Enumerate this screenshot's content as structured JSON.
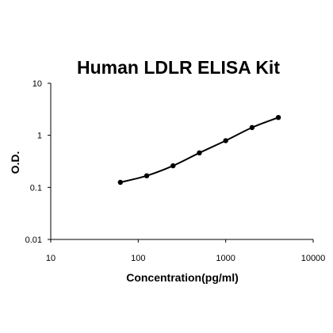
{
  "chart_data": {
    "type": "scatter",
    "title": "Human LDLR ELISA Kit",
    "xlabel": "Concentration(pg/ml)",
    "ylabel": "O.D.",
    "x_scale": "log",
    "y_scale": "log",
    "xlim": [
      10,
      10000
    ],
    "ylim": [
      0.01,
      10
    ],
    "x_ticks": [
      10,
      100,
      1000,
      10000
    ],
    "x_tick_labels": [
      "10",
      "100",
      "1000",
      "10000"
    ],
    "y_ticks": [
      0.01,
      0.1,
      1,
      10
    ],
    "y_tick_labels": [
      "0.01",
      "0.1",
      "1",
      "10"
    ],
    "grid": false,
    "series": [
      {
        "x": [
          62.5,
          125,
          250,
          500,
          1000,
          2000,
          4000
        ],
        "y": [
          0.125,
          0.167,
          0.26,
          0.46,
          0.79,
          1.41,
          2.2
        ]
      }
    ]
  }
}
